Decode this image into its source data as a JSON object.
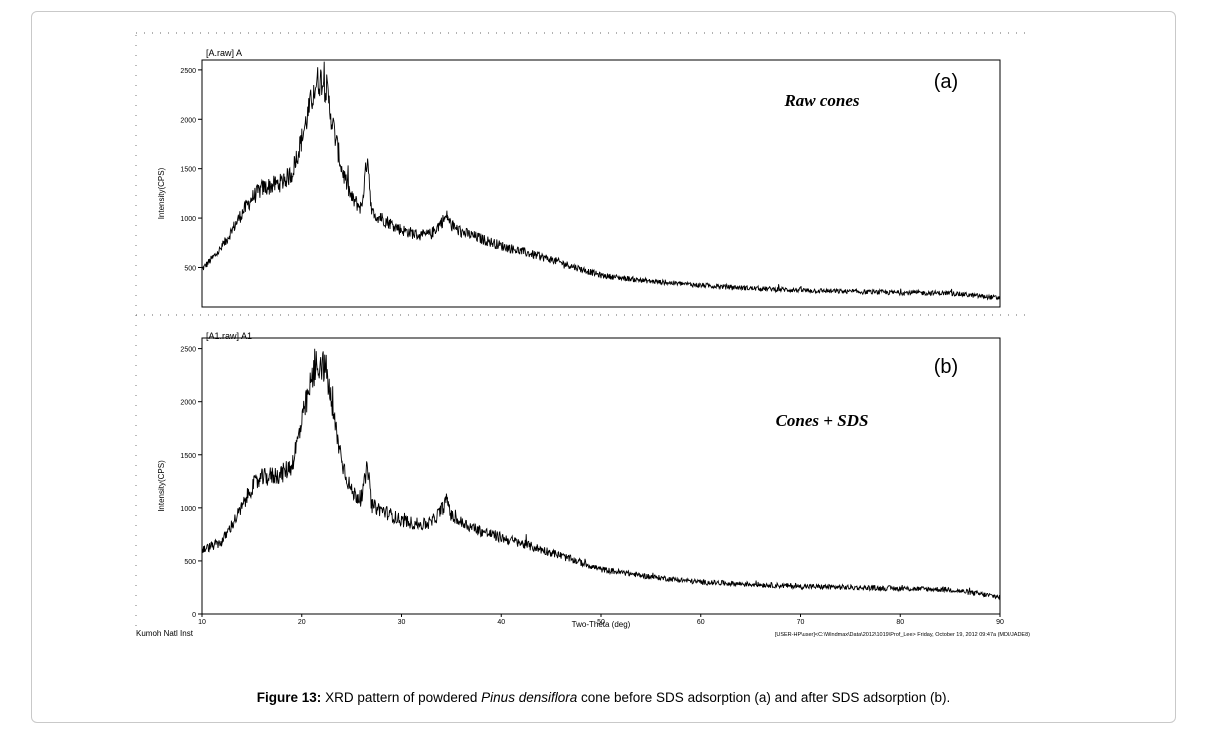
{
  "figure": {
    "caption_label": "Figure 13:",
    "caption_text_1": "XRD pattern of powdered",
    "caption_italic": "Pinus densiflora",
    "caption_text_2": "cone before SDS adsorption (a) and after SDS adsorption (b)."
  },
  "footer": {
    "left": "Kumoh Natl Inst",
    "right": "[USER-HP\\user]<C:\\Windmax\\Data\\2012\\1019\\Prof_Lee> Friday, October 19, 2012 09:47a (MDI/JADE8)"
  },
  "chart_data": [
    {
      "type": "line",
      "id": "a",
      "file_label": "[A.raw] A",
      "panel_label": "(a)",
      "annotation": "Raw cones",
      "ylabel": "Intensity(CPS)",
      "xlim": [
        10,
        90
      ],
      "ylim": [
        100,
        2600
      ],
      "yticks": [
        500,
        1000,
        1500,
        2000,
        2500
      ],
      "x": [
        10,
        12,
        14,
        15,
        16,
        17,
        18,
        19,
        20,
        21,
        21.5,
        22,
        22.5,
        23,
        24,
        25,
        26,
        26.6,
        27,
        28,
        30,
        32,
        33,
        34,
        34.6,
        35,
        36,
        38,
        40,
        45,
        50,
        55,
        60,
        65,
        70,
        75,
        80,
        85,
        90
      ],
      "values": [
        480,
        700,
        1050,
        1200,
        1300,
        1330,
        1360,
        1450,
        1800,
        2200,
        2380,
        2400,
        2300,
        2000,
        1500,
        1200,
        1100,
        1650,
        1050,
        1000,
        880,
        820,
        840,
        960,
        1020,
        920,
        860,
        790,
        720,
        580,
        420,
        360,
        320,
        290,
        270,
        255,
        245,
        240,
        190
      ],
      "sharp_peaks": [
        [
          26.6,
          1650
        ],
        [
          27.9,
          1050
        ],
        [
          34.6,
          1030
        ],
        [
          18.2,
          1450
        ]
      ]
    },
    {
      "type": "line",
      "id": "b",
      "file_label": "[A1.raw] A1",
      "panel_label": "(b)",
      "annotation": "Cones + SDS",
      "ylabel": "Intensity(CPS)",
      "xlabel": "Two-Theta (deg)",
      "xlim": [
        10,
        90
      ],
      "ylim": [
        0,
        2600
      ],
      "xticks": [
        10,
        20,
        30,
        40,
        50,
        60,
        70,
        80,
        90
      ],
      "yticks": [
        0,
        500,
        1000,
        1500,
        2000,
        2500
      ],
      "x": [
        10,
        12,
        14,
        15,
        16,
        17,
        18,
        19,
        20,
        21,
        21.5,
        22,
        22.5,
        23,
        24,
        25,
        26,
        26.6,
        27,
        28,
        30,
        32,
        33,
        34,
        34.6,
        35,
        36,
        38,
        40,
        45,
        50,
        55,
        60,
        65,
        70,
        75,
        80,
        85,
        90
      ],
      "values": [
        600,
        680,
        1000,
        1200,
        1280,
        1300,
        1320,
        1400,
        1800,
        2200,
        2350,
        2360,
        2280,
        1950,
        1450,
        1150,
        1080,
        1400,
        1020,
        980,
        880,
        840,
        860,
        980,
        1080,
        920,
        860,
        780,
        720,
        580,
        420,
        350,
        300,
        280,
        260,
        250,
        240,
        230,
        160
      ],
      "sharp_peaks": [
        [
          26.6,
          1400
        ],
        [
          34.6,
          1100
        ],
        [
          18.0,
          1370
        ]
      ]
    }
  ]
}
